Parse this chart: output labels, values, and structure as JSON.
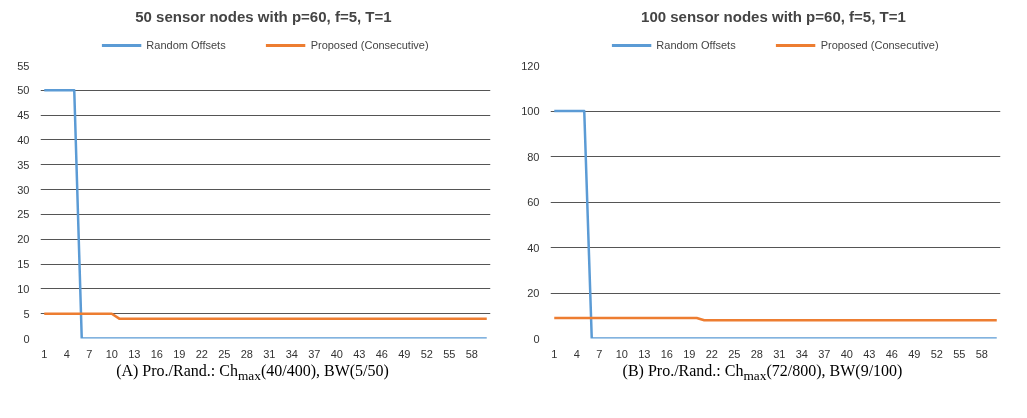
{
  "chart_data": [
    {
      "type": "line",
      "title": "50 sensor nodes  with p=60, f=5, T=1",
      "categories": [
        "1",
        null,
        null,
        "4",
        null,
        null,
        "7",
        null,
        null,
        "10",
        null,
        null,
        "13",
        null,
        null,
        "16",
        null,
        null,
        "19",
        null,
        null,
        "22",
        null,
        null,
        "25",
        null,
        null,
        "28",
        null,
        null,
        "31",
        null,
        null,
        "34",
        null,
        null,
        "37",
        null,
        null,
        "40",
        null,
        null,
        "43",
        null,
        null,
        "46",
        null,
        null,
        "49",
        null,
        null,
        "52",
        null,
        null,
        "55",
        null,
        null,
        "58",
        null,
        null
      ],
      "series": [
        {
          "name": "Random Offsets",
          "color": "#5b9bd5",
          "values": [
            50,
            50,
            50,
            50,
            50,
            0,
            0,
            0,
            0,
            0,
            0,
            0,
            0,
            0,
            0,
            0,
            0,
            0,
            0,
            0,
            0,
            0,
            0,
            0,
            0,
            0,
            0,
            0,
            0,
            0,
            0,
            0,
            0,
            0,
            0,
            0,
            0,
            0,
            0,
            0,
            0,
            0,
            0,
            0,
            0,
            0,
            0,
            0,
            0,
            0,
            0,
            0,
            0,
            0,
            0,
            0,
            0,
            0,
            0,
            0
          ]
        },
        {
          "name": "Proposed (Consecutive)",
          "color": "#ed7d31",
          "values": [
            5,
            5,
            5,
            5,
            5,
            5,
            5,
            5,
            5,
            5,
            4,
            4,
            4,
            4,
            4,
            4,
            4,
            4,
            4,
            4,
            4,
            4,
            4,
            4,
            4,
            4,
            4,
            4,
            4,
            4,
            4,
            4,
            4,
            4,
            4,
            4,
            4,
            4,
            4,
            4,
            4,
            4,
            4,
            4,
            4,
            4,
            4,
            4,
            4,
            4,
            4,
            4,
            4,
            4,
            4,
            4,
            4,
            4,
            4,
            4
          ]
        }
      ],
      "ylim": [
        0,
        55
      ],
      "yticks": [
        0,
        5,
        10,
        15,
        20,
        25,
        30,
        35,
        40,
        45,
        50,
        55
      ],
      "grid": "y",
      "legend": "top",
      "marker": "none",
      "line_style": "solid",
      "annotations": [
        "(A) Pro./Rand.: Ch$_{max}$(40/400), BW(5/50)"
      ]
    },
    {
      "type": "line",
      "title": "100 sensor nodes  with p=60, f=5, T=1",
      "categories": [
        "1",
        null,
        null,
        "4",
        null,
        null,
        "7",
        null,
        null,
        "10",
        null,
        null,
        "13",
        null,
        null,
        "16",
        null,
        null,
        "19",
        null,
        null,
        "22",
        null,
        null,
        "25",
        null,
        null,
        "28",
        null,
        null,
        "31",
        null,
        null,
        "34",
        null,
        null,
        "37",
        null,
        null,
        "40",
        null,
        null,
        "43",
        null,
        null,
        "46",
        null,
        null,
        "49",
        null,
        null,
        "52",
        null,
        null,
        "55",
        null,
        null,
        "58",
        null,
        null
      ],
      "series": [
        {
          "name": "Random Offsets",
          "color": "#5b9bd5",
          "values": [
            100,
            100,
            100,
            100,
            100,
            0,
            0,
            0,
            0,
            0,
            0,
            0,
            0,
            0,
            0,
            0,
            0,
            0,
            0,
            0,
            0,
            0,
            0,
            0,
            0,
            0,
            0,
            0,
            0,
            0,
            0,
            0,
            0,
            0,
            0,
            0,
            0,
            0,
            0,
            0,
            0,
            0,
            0,
            0,
            0,
            0,
            0,
            0,
            0,
            0,
            0,
            0,
            0,
            0,
            0,
            0,
            0,
            0,
            0,
            0
          ]
        },
        {
          "name": "Proposed (Consecutive)",
          "color": "#ed7d31",
          "values": [
            9,
            9,
            9,
            9,
            9,
            9,
            9,
            9,
            9,
            9,
            9,
            9,
            9,
            9,
            9,
            9,
            9,
            9,
            9,
            9,
            8,
            8,
            8,
            8,
            8,
            8,
            8,
            8,
            8,
            8,
            8,
            8,
            8,
            8,
            8,
            8,
            8,
            8,
            8,
            8,
            8,
            8,
            8,
            8,
            8,
            8,
            8,
            8,
            8,
            8,
            8,
            8,
            8,
            8,
            8,
            8,
            8,
            8,
            8,
            8
          ]
        }
      ],
      "ylim": [
        0,
        120
      ],
      "yticks": [
        0,
        20,
        40,
        60,
        80,
        100,
        120
      ],
      "grid": "y",
      "legend": "top",
      "marker": "none",
      "line_style": "solid",
      "annotations": [
        "(B) Pro./Rand.: Ch$_{max}$(72/800), BW(9/100)"
      ]
    }
  ]
}
